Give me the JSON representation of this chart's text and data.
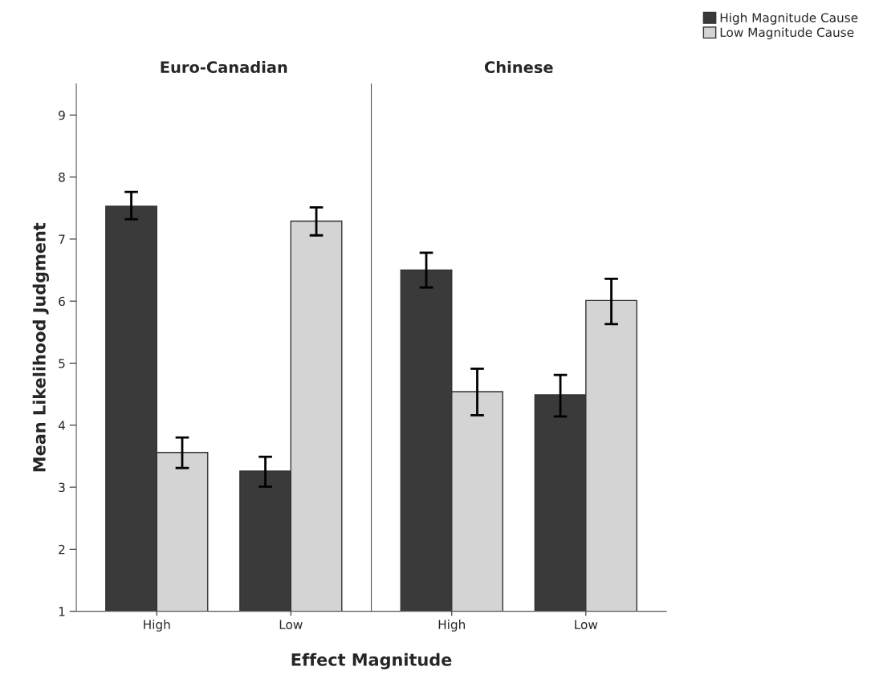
{
  "chart_data": [
    {
      "type": "bar",
      "title": "Euro-Canadian",
      "xlabel": "Effect Magnitude",
      "ylabel": "Mean Likelihood Judgment",
      "categories": [
        "High",
        "Low"
      ],
      "ylim": [
        1,
        9.5
      ],
      "yticks": [
        1,
        2,
        3,
        4,
        5,
        6,
        7,
        8,
        9
      ],
      "legend": "top right",
      "grid": false,
      "series": [
        {
          "name": "High Magnitude Cause",
          "color": "#3a3a3a",
          "values": [
            7.53,
            3.26
          ],
          "errors": [
            [
              7.32,
              7.76
            ],
            [
              3.01,
              3.49
            ]
          ]
        },
        {
          "name": "Low Magnitude Cause",
          "color": "#d4d4d4",
          "values": [
            3.56,
            7.29
          ],
          "errors": [
            [
              3.31,
              3.8
            ],
            [
              7.06,
              7.51
            ]
          ]
        }
      ]
    },
    {
      "type": "bar",
      "title": "Chinese",
      "categories": [
        "High",
        "Low"
      ],
      "ylim": [
        1,
        9.5
      ],
      "tick_labels": "x",
      "grid": false,
      "series": [
        {
          "color": "#3a3a3a",
          "values": [
            6.5,
            4.49
          ],
          "errors": [
            [
              6.22,
              6.78
            ],
            [
              4.14,
              4.81
            ]
          ]
        },
        {
          "color": "#d4d4d4",
          "values": [
            4.54,
            6.01
          ],
          "errors": [
            [
              4.16,
              4.91
            ],
            [
              5.63,
              6.36
            ]
          ]
        }
      ]
    }
  ]
}
